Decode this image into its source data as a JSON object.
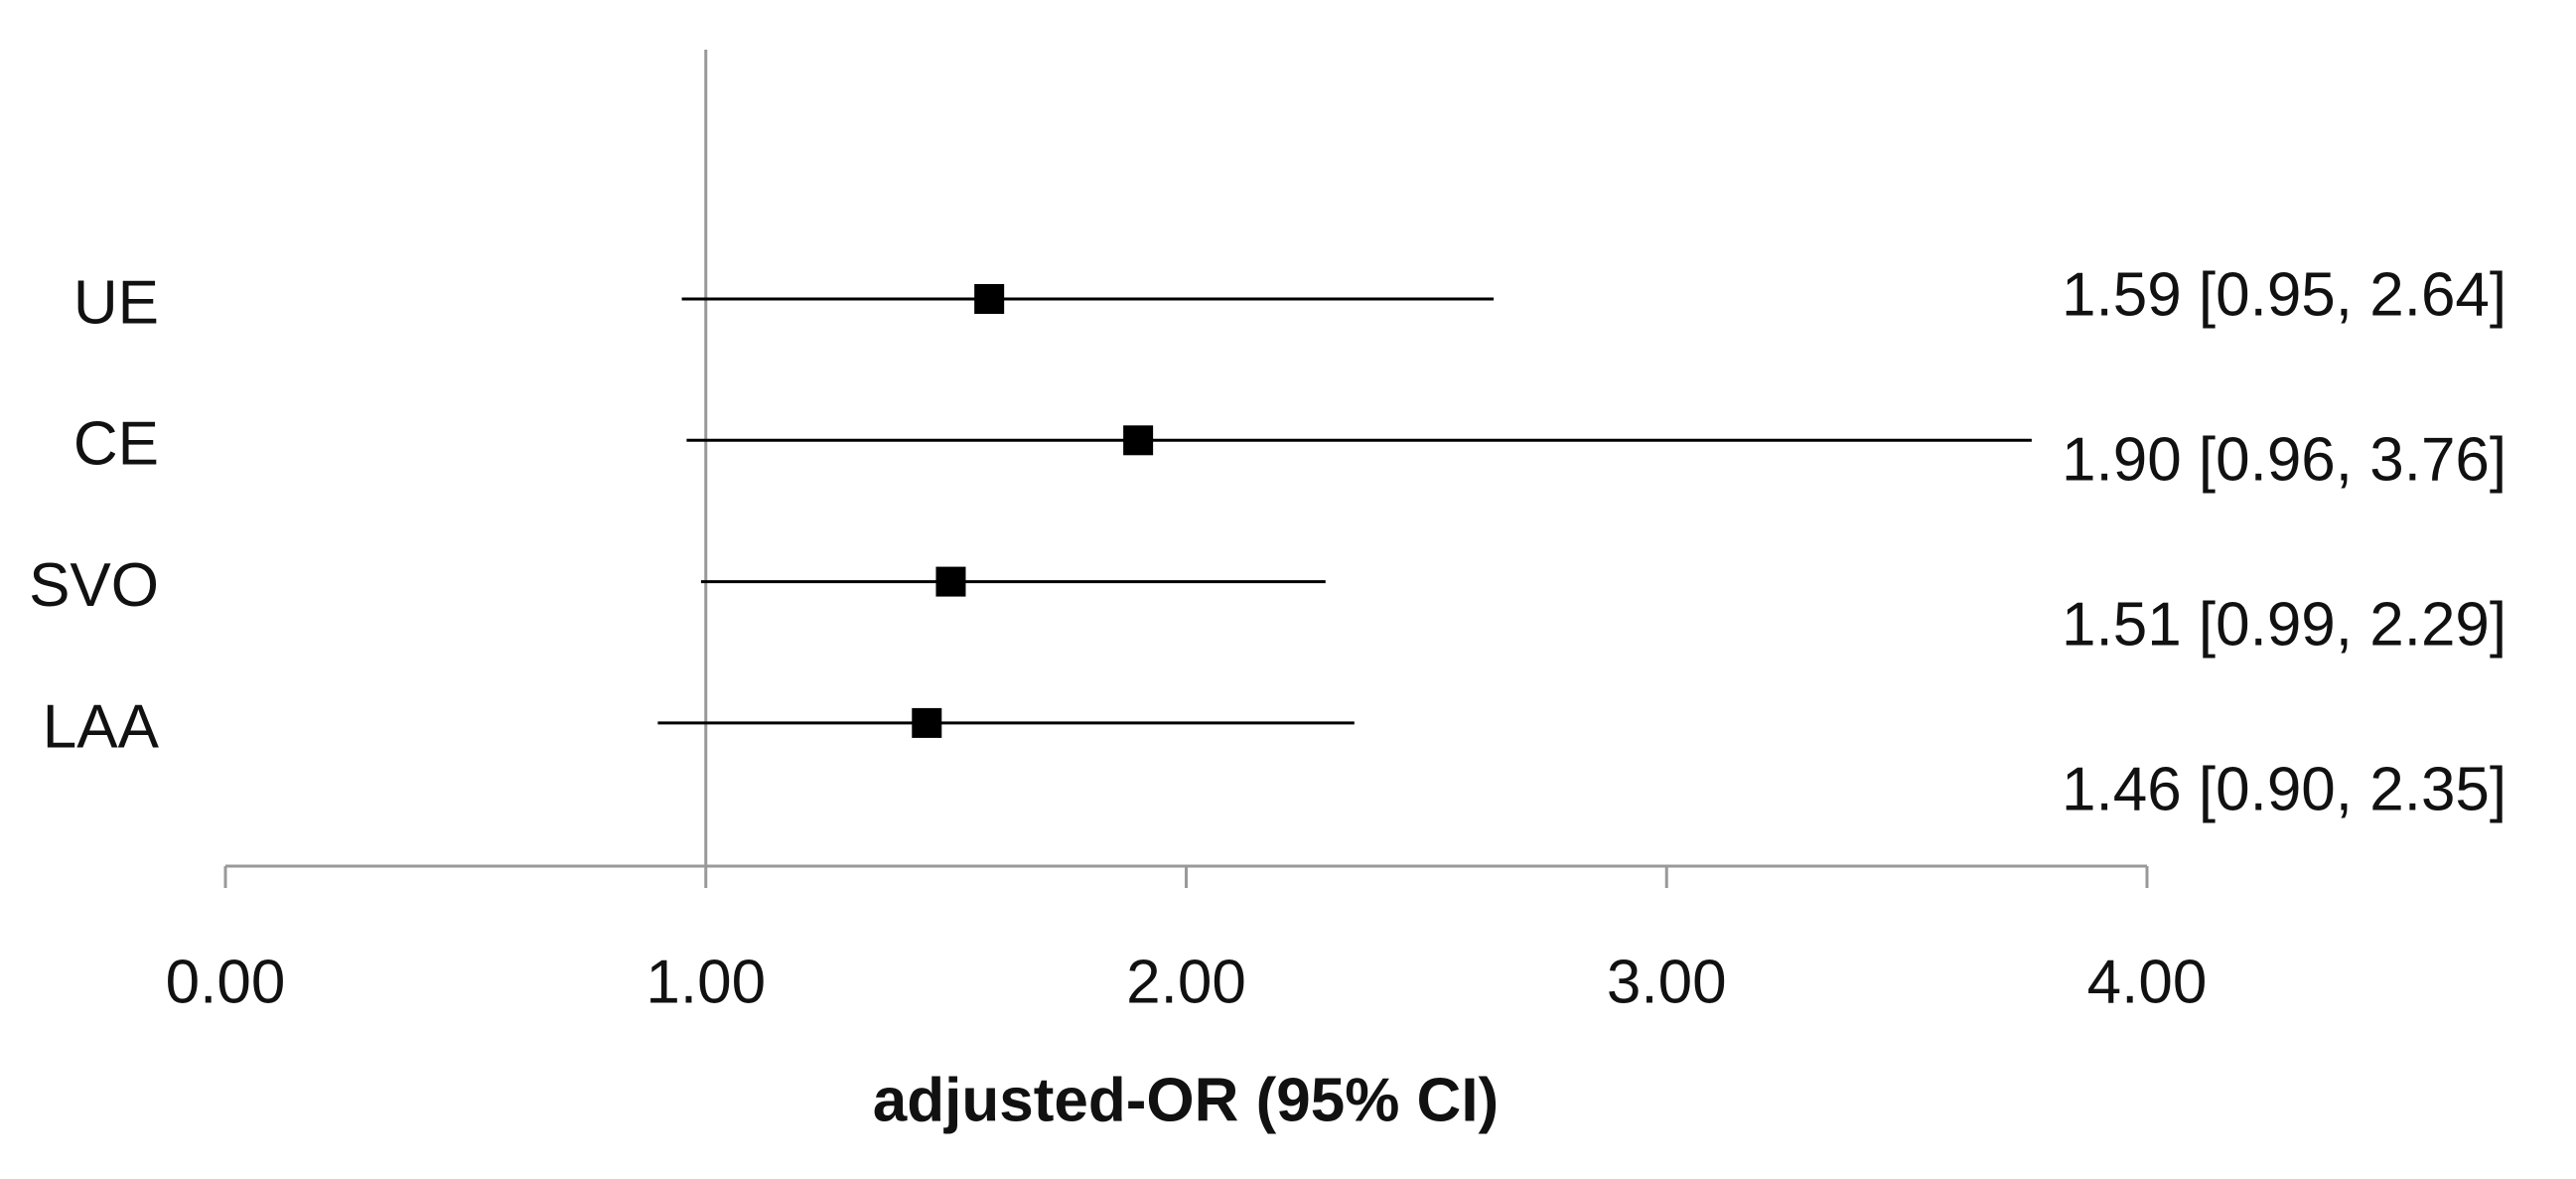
{
  "chart_data": {
    "type": "forest",
    "x_label": "adjusted-OR (95% CI)",
    "categories": [
      "UE",
      "CE",
      "SVO",
      "LAA"
    ],
    "values": [
      1.59,
      1.9,
      1.51,
      1.46
    ],
    "lower": [
      0.95,
      0.96,
      0.99,
      0.9
    ],
    "upper": [
      2.64,
      3.76,
      2.29,
      2.35
    ],
    "value_labels": [
      "1.59 [0.95, 2.64]",
      "1.90 [0.96, 3.76]",
      "1.51 [0.99, 2.29]",
      "1.46 [0.90, 2.35]"
    ],
    "color": "#000000",
    "reference_line": 1,
    "xlim": [
      0,
      4
    ],
    "xticks": [
      {
        "value": 0,
        "label": "0.00"
      },
      {
        "value": 1,
        "label": "1.00"
      },
      {
        "value": 2,
        "label": "2.00"
      },
      {
        "value": 3,
        "label": "3.00"
      },
      {
        "value": 4,
        "label": "4.00"
      }
    ]
  }
}
